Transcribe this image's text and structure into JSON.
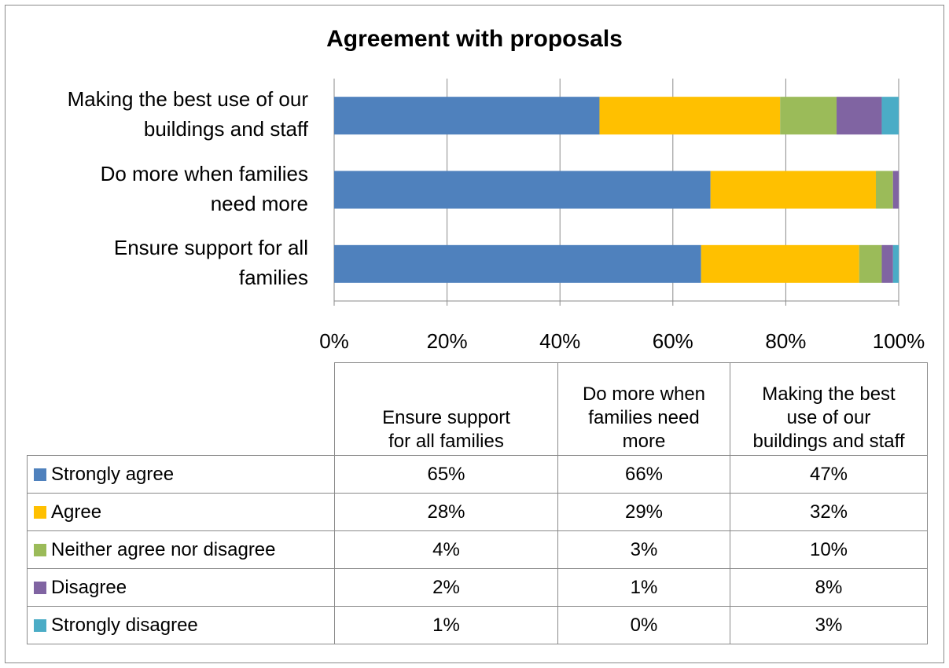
{
  "chart_data": {
    "type": "bar",
    "orientation": "horizontal",
    "stacked": "percent",
    "title": "Agreement with proposals",
    "categories": [
      "Ensure support for all families",
      "Do more when families need more",
      "Making the best use of our buildings and staff"
    ],
    "category_labels": [
      [
        "Ensure support for all",
        "families"
      ],
      [
        "Do more when families",
        "need more"
      ],
      [
        "Making the best use of our",
        "buildings and staff"
      ]
    ],
    "table_headers": [
      [
        "Ensure support",
        "for all families"
      ],
      [
        "Do more when",
        "families need",
        "more"
      ],
      [
        "Making the best",
        "use of our",
        "buildings and staff"
      ]
    ],
    "series": [
      {
        "name": "Strongly agree",
        "color": "#4F81BD",
        "values": [
          65,
          66,
          47
        ],
        "labels": [
          "65%",
          "66%",
          "47%"
        ]
      },
      {
        "name": "Agree",
        "color": "#FFC000",
        "values": [
          28,
          29,
          32
        ],
        "labels": [
          "28%",
          "29%",
          "32%"
        ]
      },
      {
        "name": "Neither agree nor disagree",
        "color": "#9BBB59",
        "values": [
          4,
          3,
          10
        ],
        "labels": [
          "4%",
          "3%",
          "10%"
        ]
      },
      {
        "name": "Disagree",
        "color": "#8064A2",
        "values": [
          2,
          1,
          8
        ],
        "labels": [
          "2%",
          "1%",
          "8%"
        ]
      },
      {
        "name": "Strongly disagree",
        "color": "#4BACC6",
        "values": [
          1,
          0,
          3
        ],
        "labels": [
          "1%",
          "0%",
          "3%"
        ]
      }
    ],
    "x_ticks": [
      "0%",
      "20%",
      "40%",
      "60%",
      "80%",
      "100%"
    ],
    "xlim": [
      0,
      100
    ],
    "grid": true,
    "legend": "data-table"
  }
}
